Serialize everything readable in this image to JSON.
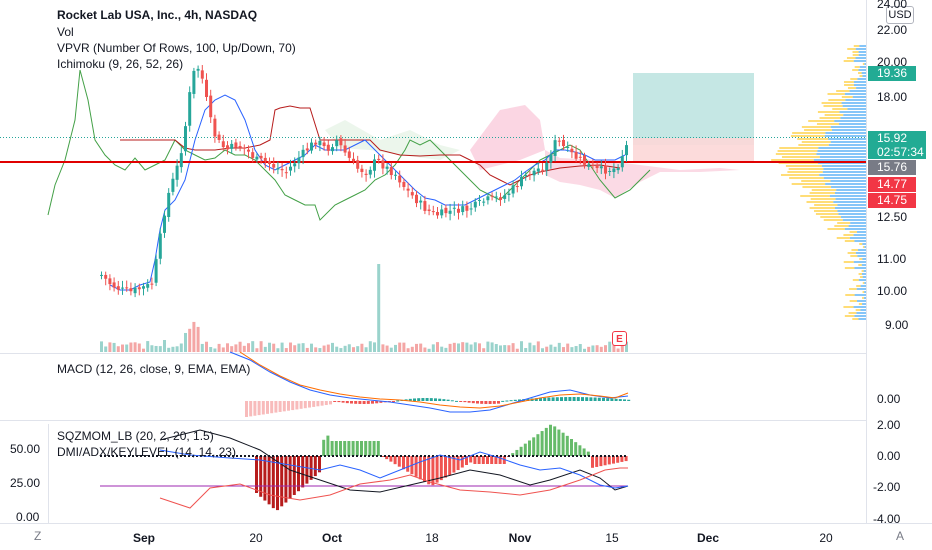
{
  "main_legend": {
    "title": "Rocket Lab USA, Inc., 4h, NASDAQ",
    "vol": "Vol",
    "vpvr": "VPVR (Number Of Rows, 100, Up/Down, 70)",
    "ichimoku": "Ichimoku (9, 26, 52, 26)"
  },
  "macd_legend": "MACD (12, 26, close, 9, EMA, EMA)",
  "sqz_legend": "SQZMOM_LB (20, 2, 20, 1.5)",
  "dmi_legend": "DMI/ADX/KEYLEVEL (14, 14, 23)",
  "currency": "USD",
  "price_axis": [
    "24.00",
    "22.00",
    "20.00",
    "18.00",
    "12.50",
    "11.00",
    "10.00",
    "9.00"
  ],
  "price_tags": {
    "target": "19.36",
    "last": "15.92",
    "countdown": "02:57:34",
    "level_a": "15.76",
    "level_b": "14.77",
    "stop": "14.75"
  },
  "macd_axis": [
    "0.00"
  ],
  "sqz_axis_right": [
    "2.00",
    "0.00",
    "-2.00",
    "-4.00"
  ],
  "sqz_axis_left": [
    "50.00",
    "25.00",
    "0.00"
  ],
  "time_axis": [
    {
      "label": "Sep",
      "bold": true
    },
    {
      "label": "20",
      "bold": false
    },
    {
      "label": "Oct",
      "bold": true
    },
    {
      "label": "18",
      "bold": false
    },
    {
      "label": "Nov",
      "bold": true
    },
    {
      "label": "15",
      "bold": false
    },
    {
      "label": "Dec",
      "bold": true
    },
    {
      "label": "20",
      "bold": false
    }
  ],
  "earnings_badge": "E",
  "corner_left": "Z",
  "corner_right": "A",
  "colors": {
    "up": "#26a69a",
    "down": "#ef5350",
    "keyline": "#e00000",
    "tenkan": "#2962ff",
    "kijun": "#b71c1c",
    "lagging": "#43a047",
    "cloud_up": "#a5d6a7",
    "cloud_down": "#f8bbd0",
    "target_zone": "#b2dfdb",
    "stop_zone": "#fcd7d7",
    "vpvr_up": "#2196f3",
    "vpvr_down": "#ffc107",
    "tag_red": "#f23645",
    "tag_teal": "#22ab94",
    "tag_gray": "#787b86"
  }
}
